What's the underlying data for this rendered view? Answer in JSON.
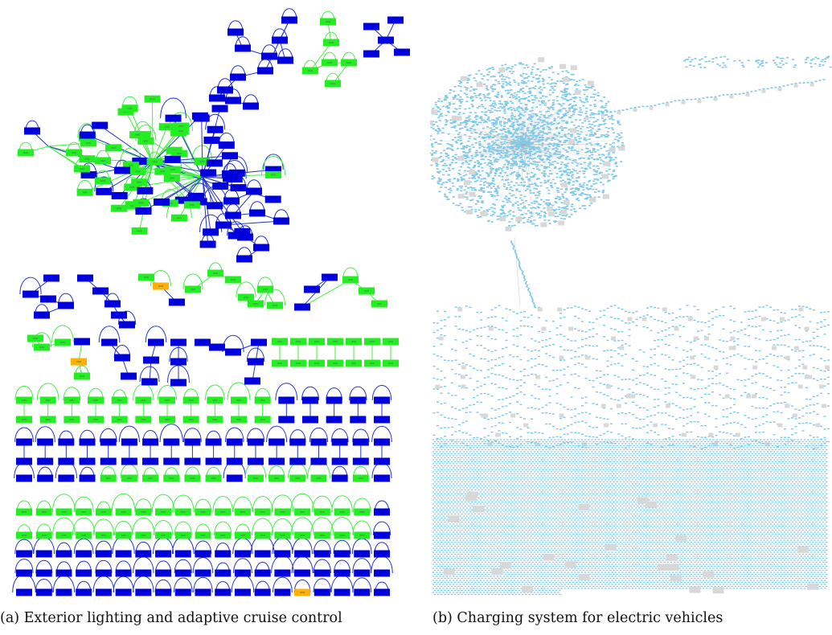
{
  "figure": {
    "panels": [
      {
        "id": "a",
        "caption": "(a) Exterior lighting and adaptive cruise control",
        "node_colors": [
          "#0000dd",
          "#22ee22",
          "#ffb000"
        ],
        "edge_colors": [
          "#2233cc",
          "#44ee44"
        ]
      },
      {
        "id": "b",
        "caption": "(b) Charging system for electric vehicles",
        "node_colors": [
          "#7ec8e8",
          "#d8d8d8"
        ],
        "edge_colors": [
          "#a9a9a9"
        ]
      }
    ]
  }
}
